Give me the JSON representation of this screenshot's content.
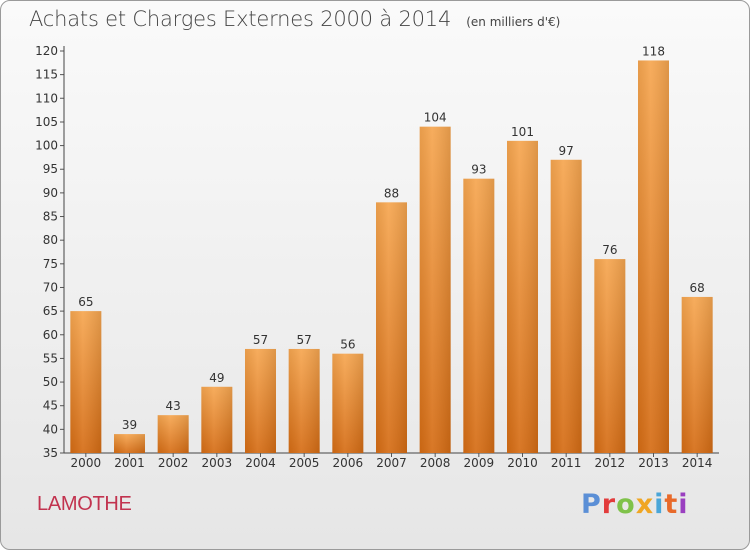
{
  "header": {
    "title": "Achats et Charges Externes 2000 à 2014",
    "unit": "(en milliers d'€)"
  },
  "footer": {
    "commune": "LAMOTHE",
    "logo_letters": [
      "P",
      "r",
      "o",
      "x",
      "i",
      "t",
      "i"
    ]
  },
  "colors": {
    "bar_top": "#f6a650",
    "bar_bottom": "#d56c14",
    "commune": "#c2334f",
    "logo": [
      "#5b8fd6",
      "#e23c3c",
      "#7fc24a",
      "#f0a623",
      "#4aa6d8",
      "#e86a2a",
      "#9a3fc0"
    ]
  },
  "chart_data": {
    "type": "bar",
    "title": "Achats et Charges Externes 2000 à 2014",
    "subtitle": "(en milliers d'€)",
    "categories": [
      "2000",
      "2001",
      "2002",
      "2003",
      "2004",
      "2005",
      "2006",
      "2007",
      "2008",
      "2009",
      "2010",
      "2011",
      "2012",
      "2013",
      "2014"
    ],
    "values": [
      65,
      39,
      43,
      49,
      57,
      57,
      56,
      88,
      104,
      93,
      101,
      97,
      76,
      118,
      68
    ],
    "ylim": [
      35,
      120
    ],
    "yticks": [
      35,
      40,
      45,
      50,
      55,
      60,
      65,
      70,
      75,
      80,
      85,
      90,
      95,
      100,
      105,
      110,
      115,
      120
    ],
    "grid": false,
    "data_labels": true
  }
}
